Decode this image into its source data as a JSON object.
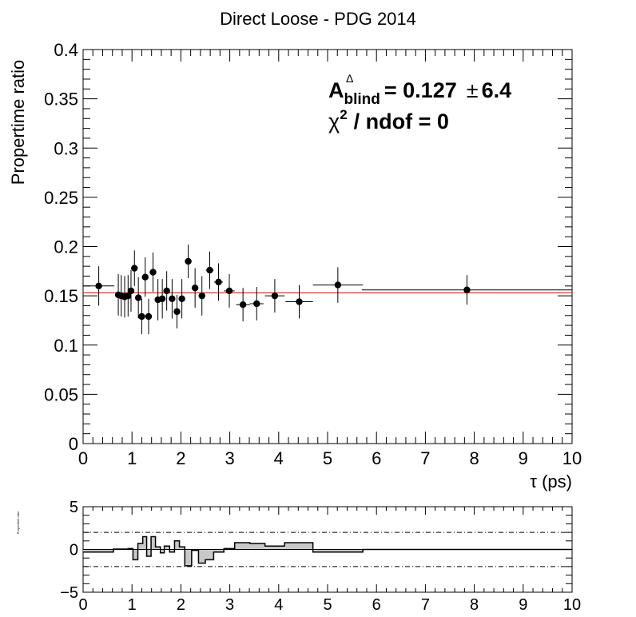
{
  "chart_data": [
    {
      "type": "scatter",
      "title": "Direct Loose - PDG 2014",
      "xlabel": "τ (ps)",
      "ylabel": "Propertime ratio",
      "xlim": [
        0,
        10
      ],
      "ylim": [
        0,
        0.4
      ],
      "x_ticks": [
        "0",
        "1",
        "2",
        "3",
        "4",
        "5",
        "6",
        "7",
        "8",
        "9",
        "10"
      ],
      "y_ticks": [
        "0",
        "0.05",
        "0.1",
        "0.15",
        "0.2",
        "0.25",
        "0.3",
        "0.35",
        "0.4"
      ],
      "annotation": {
        "a_main": "A",
        "a_sup": "Δ",
        "a_sub": "blind",
        "a_value": "= 0.127",
        "pm": "±",
        "a_err": "6.4",
        "chi_main": "χ",
        "chi_sup": "2",
        "chi_rest": "/ ndof = 0"
      },
      "fit_line": {
        "value": 0.153,
        "color": "#e02020"
      },
      "points": [
        {
          "x": 0.32,
          "y": 0.16,
          "xerr": 0.32,
          "yerr": 0.02
        },
        {
          "x": 0.72,
          "y": 0.151,
          "xerr": 0.06,
          "yerr": 0.021
        },
        {
          "x": 0.78,
          "y": 0.15,
          "xerr": 0.05,
          "yerr": 0.021
        },
        {
          "x": 0.85,
          "y": 0.149,
          "xerr": 0.05,
          "yerr": 0.021
        },
        {
          "x": 0.92,
          "y": 0.15,
          "xerr": 0.05,
          "yerr": 0.021
        },
        {
          "x": 0.98,
          "y": 0.155,
          "xerr": 0.05,
          "yerr": 0.021
        },
        {
          "x": 1.05,
          "y": 0.178,
          "xerr": 0.05,
          "yerr": 0.018
        },
        {
          "x": 1.13,
          "y": 0.148,
          "xerr": 0.05,
          "yerr": 0.021
        },
        {
          "x": 1.2,
          "y": 0.129,
          "xerr": 0.05,
          "yerr": 0.018
        },
        {
          "x": 1.27,
          "y": 0.169,
          "xerr": 0.05,
          "yerr": 0.02
        },
        {
          "x": 1.34,
          "y": 0.129,
          "xerr": 0.05,
          "yerr": 0.018
        },
        {
          "x": 1.43,
          "y": 0.174,
          "xerr": 0.05,
          "yerr": 0.02
        },
        {
          "x": 1.53,
          "y": 0.146,
          "xerr": 0.05,
          "yerr": 0.021
        },
        {
          "x": 1.62,
          "y": 0.147,
          "xerr": 0.05,
          "yerr": 0.02
        },
        {
          "x": 1.71,
          "y": 0.155,
          "xerr": 0.05,
          "yerr": 0.02
        },
        {
          "x": 1.82,
          "y": 0.147,
          "xerr": 0.06,
          "yerr": 0.02
        },
        {
          "x": 1.92,
          "y": 0.134,
          "xerr": 0.06,
          "yerr": 0.017
        },
        {
          "x": 2.02,
          "y": 0.147,
          "xerr": 0.06,
          "yerr": 0.02
        },
        {
          "x": 2.15,
          "y": 0.185,
          "xerr": 0.07,
          "yerr": 0.017
        },
        {
          "x": 2.29,
          "y": 0.158,
          "xerr": 0.07,
          "yerr": 0.02
        },
        {
          "x": 2.43,
          "y": 0.15,
          "xerr": 0.07,
          "yerr": 0.02
        },
        {
          "x": 2.59,
          "y": 0.176,
          "xerr": 0.08,
          "yerr": 0.019
        },
        {
          "x": 2.77,
          "y": 0.164,
          "xerr": 0.09,
          "yerr": 0.019
        },
        {
          "x": 2.99,
          "y": 0.155,
          "xerr": 0.11,
          "yerr": 0.017
        },
        {
          "x": 3.27,
          "y": 0.141,
          "xerr": 0.14,
          "yerr": 0.017
        },
        {
          "x": 3.55,
          "y": 0.142,
          "xerr": 0.14,
          "yerr": 0.017
        },
        {
          "x": 3.92,
          "y": 0.15,
          "xerr": 0.2,
          "yerr": 0.017
        },
        {
          "x": 4.42,
          "y": 0.144,
          "xerr": 0.28,
          "yerr": 0.017
        },
        {
          "x": 5.21,
          "y": 0.161,
          "xerr": 0.51,
          "yerr": 0.018
        },
        {
          "x": 7.85,
          "y": 0.156,
          "xerr": 2.15,
          "yerr": 0.015
        }
      ]
    },
    {
      "type": "bar",
      "ylabel": "Propertime ratio",
      "xlim": [
        0,
        10
      ],
      "ylim": [
        -5,
        5
      ],
      "x_ticks": [
        "0",
        "1",
        "2",
        "3",
        "4",
        "5",
        "6",
        "7",
        "8",
        "9",
        "10"
      ],
      "y_ticks": [
        "5",
        "0",
        "−5"
      ],
      "reference_lines": [
        2,
        -2
      ],
      "bins": [
        {
          "x0": 0.0,
          "x1": 0.62,
          "value": -0.3
        },
        {
          "x0": 0.62,
          "x1": 0.92,
          "value": 0.05
        },
        {
          "x0": 0.92,
          "x1": 1.02,
          "value": 0.1
        },
        {
          "x0": 1.02,
          "x1": 1.12,
          "value": -1.2
        },
        {
          "x0": 1.12,
          "x1": 1.22,
          "value": 0.7
        },
        {
          "x0": 1.22,
          "x1": 1.3,
          "value": 1.5
        },
        {
          "x0": 1.3,
          "x1": 1.39,
          "value": -0.8
        },
        {
          "x0": 1.39,
          "x1": 1.48,
          "value": 1.5
        },
        {
          "x0": 1.48,
          "x1": 1.58,
          "value": 0.3
        },
        {
          "x0": 1.58,
          "x1": 1.66,
          "value": -0.4
        },
        {
          "x0": 1.66,
          "x1": 1.77,
          "value": 0.4
        },
        {
          "x0": 1.77,
          "x1": 1.87,
          "value": -0.3
        },
        {
          "x0": 1.87,
          "x1": 1.97,
          "value": 1.0
        },
        {
          "x0": 1.97,
          "x1": 2.08,
          "value": 0.3
        },
        {
          "x0": 2.08,
          "x1": 2.22,
          "value": -1.9
        },
        {
          "x0": 2.22,
          "x1": 2.36,
          "value": -0.1
        },
        {
          "x0": 2.36,
          "x1": 2.5,
          "value": -1.6
        },
        {
          "x0": 2.5,
          "x1": 2.67,
          "value": -1.2
        },
        {
          "x0": 2.67,
          "x1": 2.88,
          "value": -0.3
        },
        {
          "x0": 2.88,
          "x1": 3.1,
          "value": 0.1
        },
        {
          "x0": 3.1,
          "x1": 3.41,
          "value": 0.8
        },
        {
          "x0": 3.41,
          "x1": 3.72,
          "value": 0.7
        },
        {
          "x0": 3.72,
          "x1": 4.12,
          "value": 0.4
        },
        {
          "x0": 4.12,
          "x1": 4.7,
          "value": 0.8
        },
        {
          "x0": 4.7,
          "x1": 5.72,
          "value": -0.3
        },
        {
          "x0": 5.72,
          "x1": 10.0,
          "value": 0.0
        }
      ]
    }
  ]
}
